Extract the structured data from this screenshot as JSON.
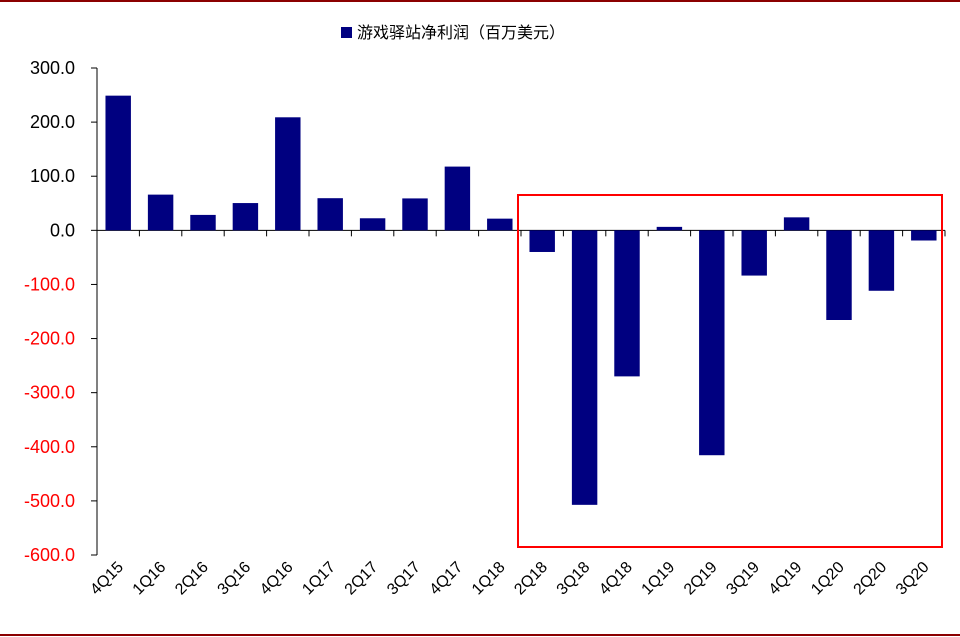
{
  "chart_data": {
    "type": "bar",
    "title": "",
    "xlabel": "",
    "ylabel": "",
    "legend": {
      "label": "游戏驿站净利润（百万美元）",
      "placement": "top-center"
    },
    "categories": [
      "4Q15",
      "1Q16",
      "2Q16",
      "3Q16",
      "4Q16",
      "1Q17",
      "2Q17",
      "3Q17",
      "4Q17",
      "1Q18",
      "2Q18",
      "3Q18",
      "4Q18",
      "1Q19",
      "2Q19",
      "3Q19",
      "4Q19",
      "1Q20",
      "2Q20",
      "3Q20"
    ],
    "series": [
      {
        "name": "游戏驿站净利润（百万美元）",
        "values": [
          248.9,
          66.0,
          28.5,
          50.4,
          208.9,
          59.4,
          22.3,
          59.0,
          117.8,
          21.6,
          -40.0,
          -507.3,
          -269.9,
          6.4,
          -415.6,
          -83.6,
          24.0,
          -165.7,
          -111.7,
          -18.8
        ]
      }
    ],
    "ylim": [
      -600,
      300
    ],
    "yticks": [
      "300.0",
      "200.0",
      "100.0",
      "0.0",
      "-100.0",
      "-200.0",
      "-300.0",
      "-400.0",
      "-500.0",
      "-600.0"
    ],
    "ytick_values": [
      300,
      200,
      100,
      0,
      -100,
      -200,
      -300,
      -400,
      -500,
      -600
    ],
    "grid": false,
    "highlight": {
      "from_category": "2Q18",
      "to_category": "3Q20"
    },
    "colors": {
      "bar": "#000080",
      "positive_tick": "#000000",
      "negative_tick": "#ff0000",
      "highlight_box": "#ff0000",
      "frame_line": "#8b0000"
    }
  }
}
